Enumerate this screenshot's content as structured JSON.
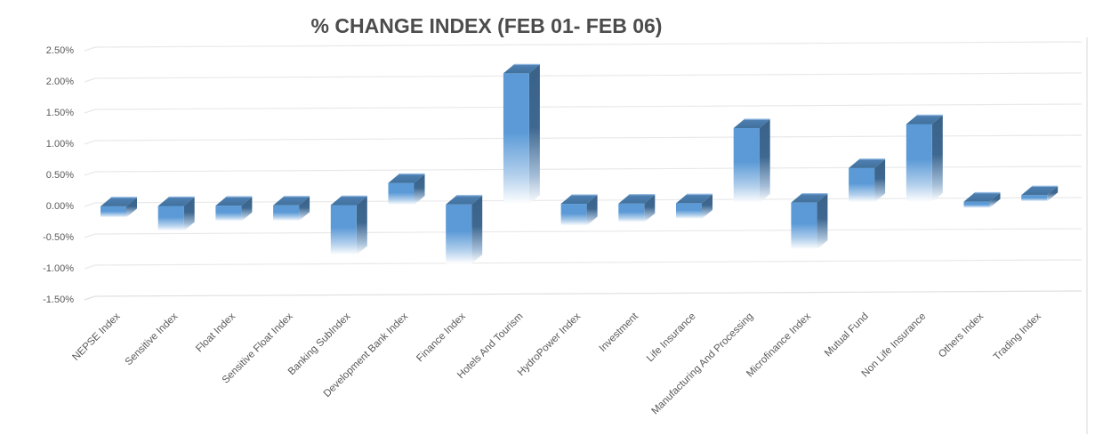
{
  "chart_data": {
    "type": "bar",
    "title": "% CHANGE INDEX (FEB 01- FEB 06)",
    "subtitle": "",
    "xlabel": "",
    "ylabel": "",
    "categories": [
      "NEPSE Index",
      "Sensitive Index",
      "Float Index",
      "Sensitive Float Index",
      "Banking SubIndex",
      "Development Bank Index",
      "Finance Index",
      "Hotels And Tourism",
      "HydroPower Index",
      "Investment",
      "Life Insurance",
      "Manufacturing And Processing",
      "Microfinance Index",
      "Mutual Fund",
      "Non Life Insurance",
      "Others Index",
      "Trading Index"
    ],
    "values": [
      -0.18,
      -0.4,
      -0.25,
      -0.25,
      -0.8,
      0.35,
      -0.95,
      2.1,
      -0.35,
      -0.3,
      -0.25,
      1.2,
      -0.75,
      0.55,
      1.25,
      -0.1,
      0.1
    ],
    "value_unit": "%",
    "ylim": [
      -1.5,
      2.5
    ],
    "yticks": [
      2.5,
      2.0,
      1.5,
      1.0,
      0.5,
      0.0,
      -0.5,
      -1.0,
      -1.5
    ],
    "ytick_labels": [
      "2.50%",
      "2.00%",
      "1.50%",
      "1.00%",
      "0.50%",
      "0.00%",
      "-0.50%",
      "-1.00%",
      "-1.50%"
    ],
    "grid": true,
    "legend": false,
    "bar_style": "3d-box-gradient-fade",
    "x_label_rotation_deg": 45,
    "colors": {
      "background": "#ffffff",
      "title_text": "#4c4c4c",
      "axis_text": "#595959",
      "gridline": "#e9e9e9",
      "gridline_bottom": "#e0e0e0",
      "side_wall_line": "#d9d9d9",
      "bar_front": "#5b9ad7",
      "bar_side": "#3a6289",
      "bar_top": "#41719c",
      "bar_top_highlight": "#8fb8e2",
      "bar_fade_to": "#ffffff"
    }
  }
}
